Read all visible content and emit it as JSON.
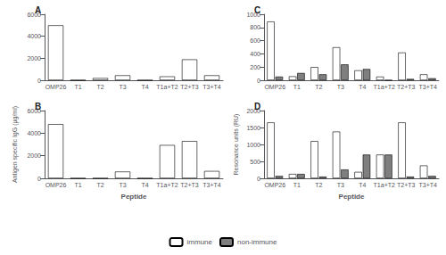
{
  "chart_data": [
    {
      "type": "bar",
      "title": "A",
      "categories": [
        "OMP26",
        "T1",
        "T2",
        "T3",
        "T4",
        "T1a+T2",
        "T2+T3",
        "T3+T4"
      ],
      "series": [
        {
          "name": "immune",
          "color": "#ffffff",
          "values": [
            5000,
            0,
            200,
            450,
            0,
            350,
            1900,
            450
          ]
        }
      ],
      "ylim": [
        0,
        6000
      ],
      "yticks": [
        0,
        2000,
        4000,
        6000
      ],
      "grid": false
    },
    {
      "type": "bar",
      "title": "B",
      "categories": [
        "OMP26",
        "T1",
        "T2",
        "T3",
        "T4",
        "T1a+T2",
        "T2+T3",
        "T3+T4"
      ],
      "series": [
        {
          "name": "immune",
          "color": "#ffffff",
          "values": [
            4800,
            0,
            0,
            600,
            0,
            2950,
            3300,
            650
          ]
        }
      ],
      "xlabel": "Peptide",
      "ylabel": "Antigen specific IgG (μg/ml)",
      "ylim": [
        0,
        6000
      ],
      "yticks": [
        0,
        2000,
        4000,
        6000
      ],
      "grid": false
    },
    {
      "type": "bar",
      "title": "C",
      "categories": [
        "OMP26",
        "T1",
        "T2",
        "T3",
        "T4",
        "T1a+T2",
        "T2+T3",
        "T3+T4"
      ],
      "series": [
        {
          "name": "immune",
          "color": "#ffffff",
          "values": [
            890,
            60,
            200,
            500,
            150,
            55,
            420,
            90
          ]
        },
        {
          "name": "non-immune",
          "color": "#7f7f7f",
          "values": [
            55,
            110,
            90,
            240,
            170,
            0,
            20,
            30
          ]
        }
      ],
      "ylim": [
        0,
        1000
      ],
      "yticks": [
        0,
        200,
        400,
        600,
        800,
        1000
      ],
      "grid": false
    },
    {
      "type": "bar",
      "title": "D",
      "categories": [
        "OMP26",
        "T1",
        "T2",
        "T3",
        "T4",
        "T1a+T2",
        "T2+T3",
        "T3+T4"
      ],
      "series": [
        {
          "name": "immune",
          "color": "#ffffff",
          "values": [
            1650,
            130,
            1100,
            1380,
            190,
            700,
            1650,
            380
          ]
        },
        {
          "name": "non-immune",
          "color": "#7f7f7f",
          "values": [
            70,
            130,
            50,
            260,
            700,
            700,
            50,
            70
          ]
        }
      ],
      "xlabel": "Peptide",
      "ylabel": "Resonance units (RU)",
      "ylim": [
        0,
        2000
      ],
      "yticks": [
        0,
        500,
        1000,
        1500,
        2000
      ],
      "grid": false,
      "legend": "bottom"
    }
  ]
}
